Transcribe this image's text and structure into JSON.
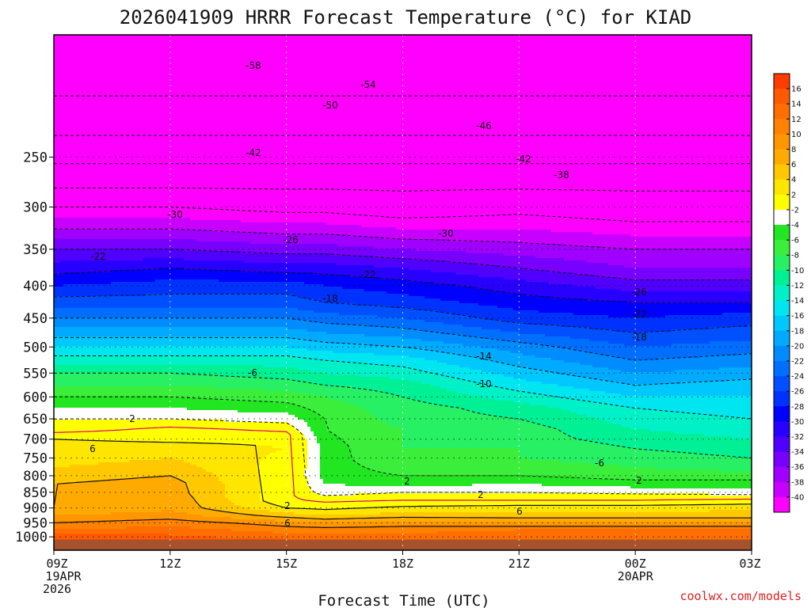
{
  "chart_data": {
    "type": "heatmap",
    "title": "2026041909 HRRR Forecast Temperature (°C) for KIAD",
    "xlabel": "Forecast Time (UTC)",
    "ylabel": "",
    "x_range_hours": [
      0,
      18
    ],
    "y_axis": {
      "scale": "log-pressure",
      "range_hPa": [
        1050,
        160
      ],
      "reversed": true
    },
    "y_ticks": [
      "250",
      "300",
      "350",
      "400",
      "450",
      "500",
      "550",
      "600",
      "650",
      "700",
      "750",
      "800",
      "850",
      "900",
      "950",
      "1000"
    ],
    "x_ticks": [
      {
        "hour": 0,
        "label": "09Z",
        "sub1": "19APR",
        "sub2": "2026"
      },
      {
        "hour": 3,
        "label": "12Z",
        "sub1": "",
        "sub2": ""
      },
      {
        "hour": 6,
        "label": "15Z",
        "sub1": "",
        "sub2": ""
      },
      {
        "hour": 9,
        "label": "18Z",
        "sub1": "",
        "sub2": ""
      },
      {
        "hour": 12,
        "label": "21Z",
        "sub1": "",
        "sub2": ""
      },
      {
        "hour": 15,
        "label": "00Z",
        "sub1": "20APR",
        "sub2": ""
      },
      {
        "hour": 18,
        "label": "03Z",
        "sub1": "",
        "sub2": ""
      }
    ],
    "ground_level_hPa": 1010,
    "ground_color": "#a5522d",
    "colorbar": {
      "labels": [
        "16",
        "14",
        "12",
        "10",
        "8",
        "6",
        "4",
        "2",
        "-2",
        "-4",
        "-6",
        "-8",
        "-10",
        "-12",
        "-14",
        "-16",
        "-18",
        "-20",
        "-22",
        "-24",
        "-26",
        "-28",
        "-30",
        "-32",
        "-34",
        "-36",
        "-38",
        "-40"
      ],
      "colors": [
        "#ff3c00",
        "#ff5a00",
        "#ff6e00",
        "#ff8200",
        "#ff9600",
        "#ffaa00",
        "#ffc800",
        "#ffe600",
        "#ffff00",
        "#ffffff",
        "#22e622",
        "#3cee3c",
        "#28f064",
        "#00f096",
        "#00f0c8",
        "#00e6f0",
        "#00c8ff",
        "#00aaff",
        "#008cff",
        "#006eff",
        "#0050ff",
        "#0032ff",
        "#0000ff",
        "#2800ff",
        "#5000ff",
        "#7800ff",
        "#a000ff",
        "#c800ff",
        "#ff00ff"
      ]
    },
    "temperature_profiles": {
      "pressure_levels_hPa": [
        1010,
        975,
        950,
        925,
        900,
        875,
        850,
        825,
        800,
        775,
        750,
        725,
        700,
        675,
        650,
        625,
        600,
        575,
        550,
        525,
        500,
        475,
        450,
        425,
        400,
        375,
        350,
        325,
        300,
        275,
        250,
        225,
        200,
        175,
        160
      ],
      "columns": [
        {
          "hour": 0,
          "T": [
            16,
            12,
            10,
            8,
            6,
            6,
            6,
            6,
            5,
            4,
            3,
            3,
            2,
            -1,
            -2,
            -4,
            -6,
            -8,
            -10,
            -13,
            -16,
            -19,
            -22,
            -25,
            -28,
            -31,
            -34,
            -38,
            -42,
            -47,
            -51,
            -55,
            -58,
            -60,
            -62
          ]
        },
        {
          "hour": 3,
          "T": [
            15,
            13,
            11,
            9,
            7.5,
            7.5,
            7,
            7,
            6,
            5,
            4,
            3,
            1.5,
            0.5,
            -2,
            -4,
            -6,
            -8,
            -10,
            -13,
            -16,
            -19,
            -22,
            -25,
            -27,
            -30,
            -34,
            -38,
            -42,
            -47,
            -51,
            -55,
            -58,
            -60,
            -61
          ]
        },
        {
          "hour": 6,
          "T": [
            14,
            11,
            9,
            5,
            2,
            0.5,
            0.5,
            0.5,
            0.8,
            1,
            1.5,
            2,
            1.5,
            -0.5,
            -3,
            -5,
            -7,
            -9,
            -11,
            -13,
            -16,
            -19,
            -22,
            -25,
            -27,
            -31,
            -35,
            -39,
            -43,
            -47,
            -51,
            -55,
            -58,
            -60,
            -61
          ]
        },
        {
          "hour": 7,
          "T": [
            14,
            11,
            8,
            4,
            1.5,
            -0.5,
            -3,
            -4,
            -5,
            -5,
            -5,
            -5,
            -5.5,
            -6,
            -6,
            -7,
            -8,
            -10,
            -12,
            -14,
            -17,
            -20,
            -23,
            -26,
            -28,
            -31,
            -35,
            -39,
            -43,
            -47,
            -51,
            -55,
            -58,
            -60,
            -61
          ]
        },
        {
          "hour": 9,
          "T": [
            14,
            11,
            9,
            5,
            2.5,
            0,
            -2,
            -4.5,
            -6,
            -7,
            -8,
            -8,
            -8,
            -8,
            -9,
            -9,
            -10,
            -11,
            -13,
            -15,
            -18,
            -21,
            -24,
            -27,
            -29,
            -32,
            -36,
            -40,
            -44,
            -47,
            -51,
            -55,
            -58,
            -60,
            -61
          ]
        },
        {
          "hour": 12,
          "T": [
            14,
            12,
            8,
            5,
            3,
            0,
            -2,
            -4,
            -6,
            -7,
            -8,
            -8,
            -9,
            -9,
            -10,
            -11,
            -13,
            -15,
            -17,
            -19,
            -21,
            -24,
            -27,
            -29,
            -31,
            -34,
            -37,
            -40,
            -43,
            -47,
            -51,
            -55,
            -58,
            -60,
            -61
          ]
        },
        {
          "hour": 15,
          "T": [
            14,
            12,
            8,
            5,
            3,
            0,
            -2.5,
            -5,
            -7,
            -8,
            -9,
            -10,
            -11,
            -12,
            -13,
            -14,
            -16,
            -18,
            -20,
            -22,
            -24,
            -26,
            -28,
            -30,
            -33,
            -36,
            -38,
            -41,
            -44,
            -47,
            -51,
            -55,
            -58,
            -60,
            -61
          ]
        },
        {
          "hour": 18,
          "T": [
            14,
            12,
            8,
            5,
            3.5,
            0.5,
            -3,
            -5,
            -7,
            -9,
            -10,
            -11,
            -12,
            -13,
            -14,
            -15,
            -16,
            -17,
            -19,
            -21,
            -23,
            -25,
            -27,
            -30,
            -33,
            -36,
            -38,
            -41,
            -44,
            -47,
            -51,
            -55,
            -58,
            -60,
            -61
          ]
        }
      ]
    },
    "contours_dashed": [
      "-58",
      "-54",
      "-50",
      "-46",
      "-42",
      "-42",
      "-38",
      "-30",
      "-30",
      "-26",
      "-26",
      "-22",
      "-22",
      "-22",
      "-18",
      "-18",
      "-14",
      "-10",
      "-6",
      "-6"
    ],
    "contours_solid": [
      "2",
      "2",
      "2",
      "2",
      "2",
      "6",
      "6",
      "6"
    ],
    "credit": "coolwx.com/models"
  }
}
